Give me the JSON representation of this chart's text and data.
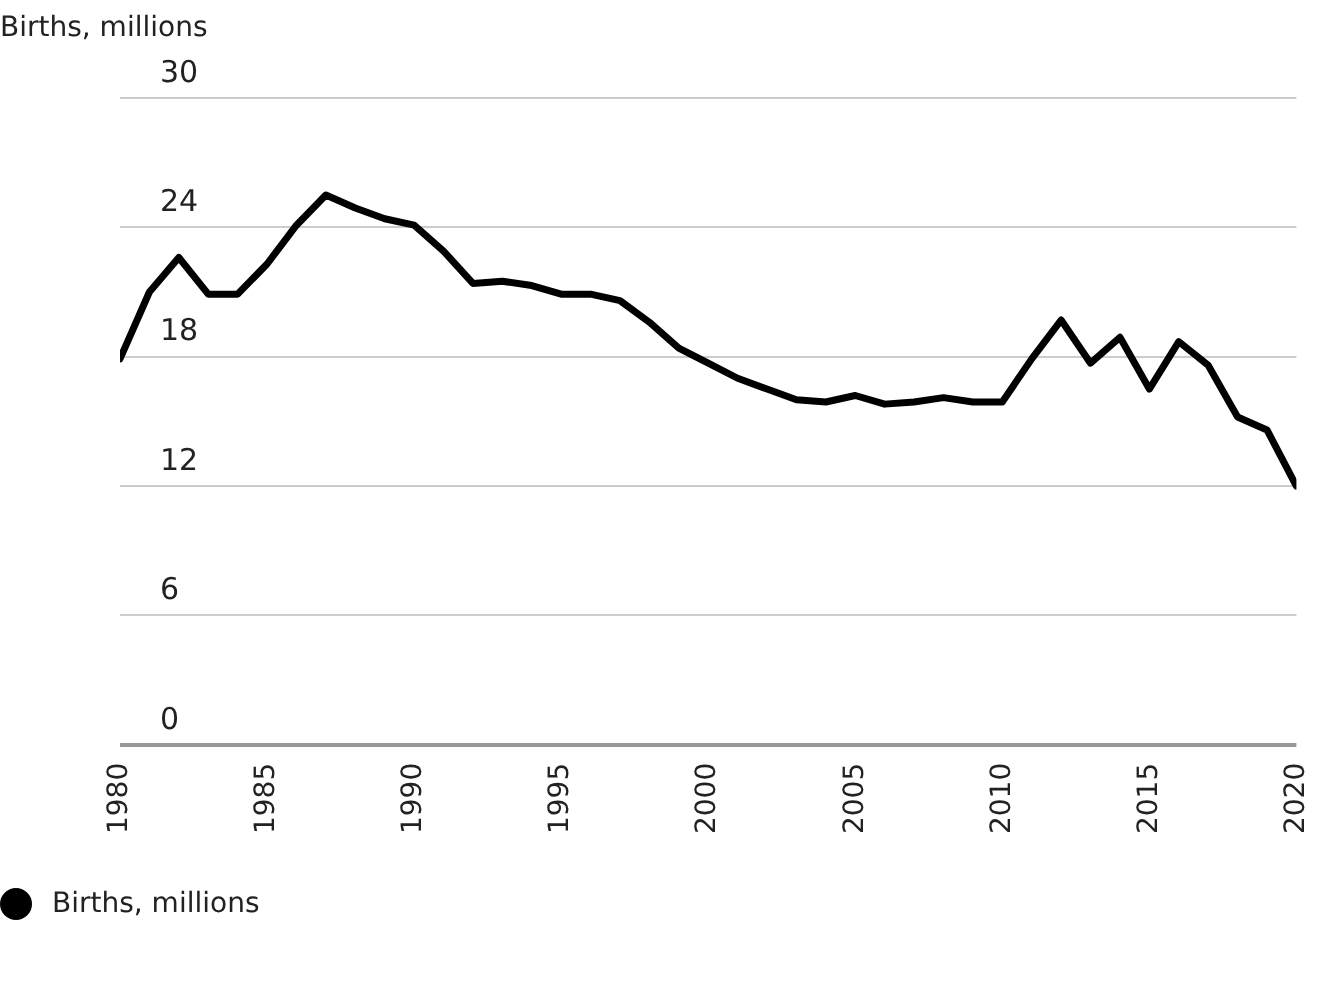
{
  "chart_data": {
    "type": "line",
    "ylabel": "Births, millions",
    "x": [
      1980,
      1981,
      1982,
      1983,
      1984,
      1985,
      1986,
      1987,
      1988,
      1989,
      1990,
      1991,
      1992,
      1993,
      1994,
      1995,
      1996,
      1997,
      1998,
      1999,
      2000,
      2001,
      2002,
      2003,
      2004,
      2005,
      2006,
      2007,
      2008,
      2009,
      2010,
      2011,
      2012,
      2013,
      2014,
      2015,
      2016,
      2017,
      2018,
      2019,
      2020
    ],
    "series": [
      {
        "name": "Births, millions",
        "color": "#000000",
        "values": [
          17.9,
          21.0,
          22.6,
          20.9,
          20.9,
          22.3,
          24.1,
          25.5,
          24.9,
          24.4,
          24.1,
          22.9,
          21.4,
          21.5,
          21.3,
          20.9,
          20.9,
          20.6,
          19.6,
          18.4,
          17.7,
          17.0,
          16.5,
          16.0,
          15.9,
          16.2,
          15.8,
          15.9,
          16.1,
          15.9,
          15.9,
          17.9,
          19.7,
          17.7,
          18.9,
          16.5,
          18.7,
          17.6,
          15.2,
          14.6,
          12.0
        ]
      }
    ],
    "xlim": [
      1980,
      2020
    ],
    "xticks": [
      1980,
      1985,
      1990,
      1995,
      2000,
      2005,
      2010,
      2015,
      2020
    ],
    "ylim": [
      0,
      30
    ],
    "yticks": [
      0,
      6,
      12,
      18,
      24,
      30
    ],
    "grid": "y",
    "legend": "bottom left",
    "marker": "none",
    "line_style": "solid"
  }
}
